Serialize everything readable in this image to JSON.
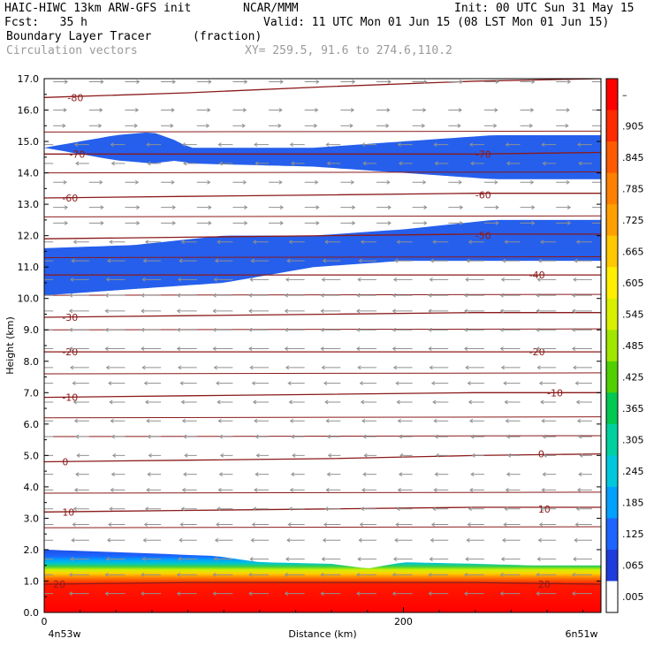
{
  "header": {
    "line1_left": "HAIC-HIWC 13km ARW-GFS init",
    "line1_mid": "NCAR/MMM",
    "line1_right": "Init: 00 UTC Sun 31 May 15",
    "line2_left": "Fcst:   35 h",
    "line2_right": "Valid: 11 UTC Mon 01 Jun 15 (08 LST Mon 01 Jun 15)",
    "line3_left": "Boundary Layer Tracer",
    "line3_unit": "(fraction)",
    "line4_left": "Circulation vectors",
    "line4_mid": "XY= 259.5, 91.6 to 274.6,110.2"
  },
  "colors": {
    "contour": "#8b1a1a",
    "vector": "#909090",
    "blue": "#1e50e6",
    "lightblue": "#3c8cff"
  },
  "chart_data": {
    "type": "heatmap",
    "xlabel": "Distance (km)",
    "ylabel": "Height (km)",
    "xlim": [
      0,
      310
    ],
    "ylim": [
      0,
      17
    ],
    "x_ticks": [
      {
        "value": 0,
        "label": "0"
      },
      {
        "value": 200,
        "label": "200"
      }
    ],
    "x_end_labels": {
      "left": "4n53w",
      "right": "6n51w"
    },
    "y_ticks": [
      "0.0",
      "1.0",
      "2.0",
      "3.0",
      "4.0",
      "5.0",
      "6.0",
      "7.0",
      "8.0",
      "9.0",
      "10.0",
      "11.0",
      "12.0",
      "13.0",
      "14.0",
      "15.0",
      "16.0",
      "17.0"
    ],
    "colorbar": {
      "labels": [
        "–",
        ".905",
        ".845",
        ".785",
        ".725",
        ".665",
        ".605",
        ".545",
        ".485",
        ".425",
        ".365",
        ".305",
        ".245",
        ".185",
        ".125",
        ".065",
        ".005"
      ],
      "colors": [
        "#ff0000",
        "#ff2a00",
        "#ff5a00",
        "#ff8000",
        "#ffa000",
        "#ffc800",
        "#ffee00",
        "#d8f000",
        "#a0e600",
        "#50d000",
        "#00c850",
        "#00d0a0",
        "#00c8dc",
        "#00a0ff",
        "#1e64ff",
        "#1e3cdc",
        "#ffffff"
      ]
    },
    "contours": [
      {
        "label": "-80",
        "y": [
          16.4,
          16.55,
          16.75,
          16.92,
          17.0
        ],
        "label_positions": [
          {
            "x": 13,
            "y": 16.4
          }
        ]
      },
      {
        "label": "-70",
        "y": [
          14.6,
          14.6,
          14.6,
          14.6,
          14.65
        ],
        "label_positions": [
          {
            "x": 14,
            "y": 14.6
          },
          {
            "x": 240,
            "y": 14.6
          }
        ]
      },
      {
        "label": "-60",
        "y": [
          13.2,
          13.25,
          13.3,
          13.35,
          13.35
        ],
        "label_positions": [
          {
            "x": 10,
            "y": 13.2
          },
          {
            "x": 240,
            "y": 13.3
          }
        ]
      },
      {
        "label": "-50",
        "y": [
          11.9,
          11.95,
          12.0,
          12.05,
          12.05
        ],
        "label_positions": [
          {
            "x": 240,
            "y": 12.0
          }
        ]
      },
      {
        "label": "-40",
        "y": [
          10.75,
          10.75,
          10.75,
          10.75,
          10.75
        ],
        "label_positions": [
          {
            "x": 270,
            "y": 10.75
          }
        ]
      },
      {
        "label": "-30",
        "y": [
          9.4,
          9.45,
          9.5,
          9.55,
          9.55
        ],
        "label_positions": [
          {
            "x": 10,
            "y": 9.4
          }
        ]
      },
      {
        "label": "-20",
        "y": [
          8.3,
          8.3,
          8.3,
          8.3,
          8.3
        ],
        "label_positions": [
          {
            "x": 10,
            "y": 8.3
          },
          {
            "x": 270,
            "y": 8.3
          }
        ]
      },
      {
        "label": "-10",
        "y": [
          6.85,
          6.9,
          6.95,
          7.0,
          7.0
        ],
        "label_positions": [
          {
            "x": 10,
            "y": 6.85
          },
          {
            "x": 280,
            "y": 7.0
          }
        ]
      },
      {
        "label": "0",
        "y": [
          4.8,
          4.85,
          4.9,
          5.0,
          5.05
        ],
        "label_positions": [
          {
            "x": 10,
            "y": 4.8
          },
          {
            "x": 275,
            "y": 5.05
          }
        ]
      },
      {
        "label": "10",
        "y": [
          3.2,
          3.25,
          3.3,
          3.35,
          3.35
        ],
        "label_positions": [
          {
            "x": 10,
            "y": 3.2
          },
          {
            "x": 275,
            "y": 3.3
          }
        ]
      },
      {
        "label": "20",
        "y": [
          0.9,
          0.95,
          0.95,
          0.95,
          0.9
        ],
        "label_positions": [
          {
            "x": 5,
            "y": 0.9
          },
          {
            "x": 275,
            "y": 0.9
          }
        ]
      }
    ],
    "contour_x": [
      0,
      80,
      160,
      240,
      310
    ],
    "plain_lines": [
      2.7,
      3.8,
      5.6,
      6.2,
      7.6,
      9.0,
      10.1,
      11.3,
      12.6,
      14.0,
      15.3
    ],
    "tracer_layers": [
      {
        "name": "upper-band",
        "level": ".005",
        "x": [
          0,
          40,
          60,
          75,
          80,
          150,
          200,
          250,
          310
        ],
        "top": [
          14.8,
          15.2,
          15.3,
          15.0,
          14.8,
          14.8,
          15.0,
          15.2,
          15.2
        ],
        "bottom": [
          14.8,
          14.4,
          14.3,
          14.4,
          14.3,
          14.2,
          14.0,
          13.8,
          13.8
        ]
      },
      {
        "name": "mid-band",
        "level": ".005",
        "x": [
          0,
          50,
          100,
          150,
          200,
          250,
          310
        ],
        "top": [
          11.6,
          11.7,
          12.0,
          12.0,
          12.2,
          12.5,
          12.5
        ],
        "bottom": [
          10.1,
          10.3,
          10.5,
          11.0,
          11.2,
          11.2,
          11.2
        ]
      },
      {
        "name": "boundary-layer",
        "level": ".965",
        "x": [
          0,
          50,
          95,
          120,
          160,
          180,
          200,
          240,
          270,
          310
        ],
        "top": [
          2.0,
          1.9,
          1.8,
          1.6,
          1.55,
          1.4,
          1.6,
          1.55,
          1.5,
          1.5
        ],
        "bottom": [
          0,
          0,
          0,
          0,
          0,
          0,
          0,
          0,
          0,
          0
        ]
      }
    ],
    "vector_field": {
      "x": [
        5,
        25,
        45,
        65,
        85,
        105,
        125,
        145,
        165,
        185,
        205,
        225,
        245,
        265,
        285,
        305
      ],
      "levels": [
        {
          "z": 16.9,
          "u": 0.5
        },
        {
          "z": 16.0,
          "u": 0.4
        },
        {
          "z": 15.5,
          "u": 0.3
        },
        {
          "z": 14.9,
          "u": -0.5
        },
        {
          "z": 14.3,
          "u": -0.4
        },
        {
          "z": 13.7,
          "u": 0.4
        },
        {
          "z": 12.9,
          "u": 0.5
        },
        {
          "z": 12.4,
          "u": 0.5
        },
        {
          "z": 11.8,
          "u": -0.6
        },
        {
          "z": 11.2,
          "u": -0.8
        },
        {
          "z": 10.6,
          "u": -0.9
        },
        {
          "z": 10.1,
          "u": -1.0
        },
        {
          "z": 9.6,
          "u": -1.0
        },
        {
          "z": 9.0,
          "u": -1.0
        },
        {
          "z": 8.4,
          "u": -1.0
        },
        {
          "z": 7.8,
          "u": -0.9
        },
        {
          "z": 7.3,
          "u": -0.7
        },
        {
          "z": 6.7,
          "u": -0.6
        },
        {
          "z": 6.1,
          "u": -0.5
        },
        {
          "z": 5.6,
          "u": -0.4
        },
        {
          "z": 5.0,
          "u": -0.3
        },
        {
          "z": 4.4,
          "u": -0.4
        },
        {
          "z": 3.9,
          "u": -0.5
        },
        {
          "z": 3.3,
          "u": -0.6
        },
        {
          "z": 2.8,
          "u": -0.7
        },
        {
          "z": 2.3,
          "u": -0.8
        },
        {
          "z": 1.7,
          "u": -0.9
        },
        {
          "z": 1.2,
          "u": -1.0
        },
        {
          "z": 0.6,
          "u": -1.0
        }
      ]
    }
  }
}
